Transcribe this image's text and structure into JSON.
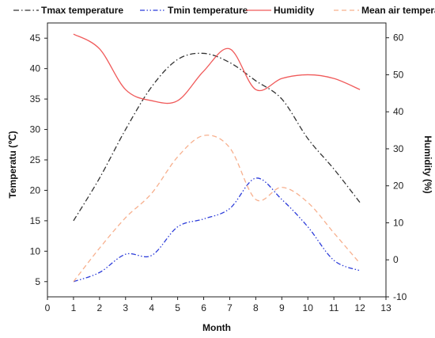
{
  "chart_data": {
    "type": "line",
    "title": "",
    "xlabel": "Month",
    "ylabel": "Temperatu (℃)",
    "y2label": "Humidity (%)",
    "xlim": [
      0,
      13
    ],
    "ylim": [
      2.5,
      47.5
    ],
    "y2lim": [
      -10,
      64
    ],
    "xticks": [
      0,
      1,
      2,
      3,
      4,
      5,
      6,
      7,
      8,
      9,
      10,
      11,
      12,
      13
    ],
    "yticks": [
      5,
      10,
      15,
      20,
      25,
      30,
      35,
      40,
      45
    ],
    "y2ticks": [
      -10,
      0,
      10,
      20,
      30,
      40,
      50,
      60
    ],
    "grid": false,
    "legend_position": "top",
    "series": [
      {
        "name": "Tmax temperature",
        "axis": "left",
        "color": "#333333",
        "dash": "dashdot",
        "x": [
          1,
          2,
          3,
          4,
          5,
          6,
          7,
          8,
          9,
          10,
          11,
          12
        ],
        "y": [
          15,
          22,
          30,
          37,
          41.5,
          42.5,
          41,
          38,
          35,
          28.5,
          23.5,
          18
        ]
      },
      {
        "name": "Tmin temperature",
        "axis": "left",
        "color": "#2b3bd9",
        "dash": "dashdotdot",
        "x": [
          1,
          2,
          3,
          4,
          5,
          6,
          7,
          8,
          9,
          10,
          11,
          12
        ],
        "y": [
          5,
          6.5,
          9.5,
          9.3,
          14,
          15.3,
          17,
          22,
          18.5,
          14,
          8.5,
          6.8
        ]
      },
      {
        "name": "Humidity",
        "axis": "right",
        "color": "#f05a5a",
        "dash": "solid",
        "x": [
          1,
          2,
          3,
          4,
          5,
          6,
          7,
          8,
          9,
          10,
          11,
          12
        ],
        "y": [
          61,
          57,
          46,
          43,
          43,
          51,
          57,
          46,
          49,
          50,
          49,
          46
        ]
      },
      {
        "name": "Mean air temperature",
        "axis": "left",
        "color": "#f7b08e",
        "dash": "dashed",
        "x": [
          1,
          2,
          3,
          4,
          5,
          6,
          7,
          8,
          9,
          10,
          11,
          12
        ],
        "y": [
          5,
          10.5,
          15.5,
          19.5,
          25.5,
          29,
          27,
          18.5,
          20.5,
          18,
          13,
          8
        ]
      }
    ]
  }
}
